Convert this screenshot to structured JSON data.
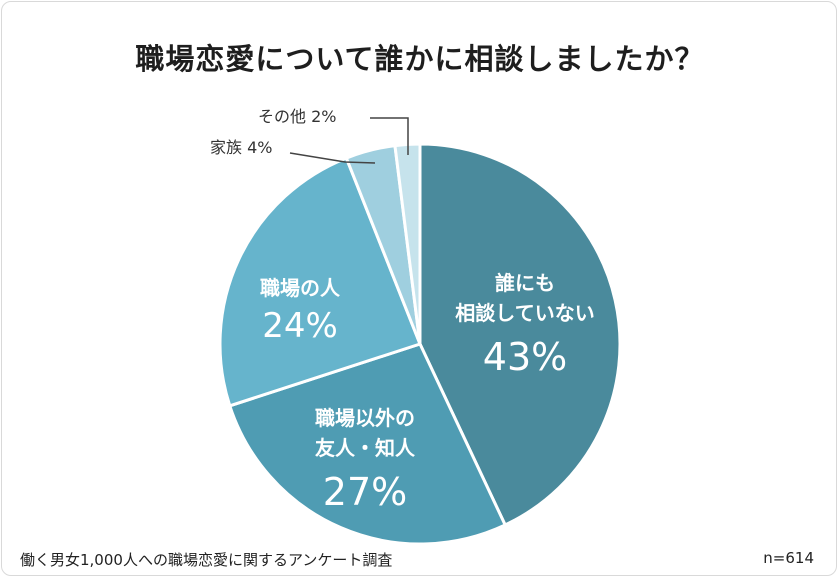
{
  "title": "職場恋愛について誰かに相談しましたか？",
  "footer": {
    "source": "働く男女1,000人への職場恋愛に関するアンケート調査",
    "sample": "n=614"
  },
  "chart_data": {
    "type": "pie",
    "title": "職場恋愛について誰かに相談しましたか？",
    "slices": [
      {
        "lines": [
          "誰にも",
          "相談していない"
        ],
        "pct": "43%",
        "value": 43,
        "color": "#4a8a9c"
      },
      {
        "lines": [
          "職場以外の",
          "友人・知人"
        ],
        "pct": "27%",
        "value": 27,
        "color": "#4f9cb3"
      },
      {
        "lines": [
          "職場の人"
        ],
        "pct": "24%",
        "value": 24,
        "color": "#66b4cc"
      },
      {
        "lines": [
          "家族 4%"
        ],
        "pct": "",
        "value": 4,
        "color": "#9fcfdf"
      },
      {
        "lines": [
          "その他 2%"
        ],
        "pct": "",
        "value": 2,
        "color": "#c6e3ec"
      }
    ]
  }
}
